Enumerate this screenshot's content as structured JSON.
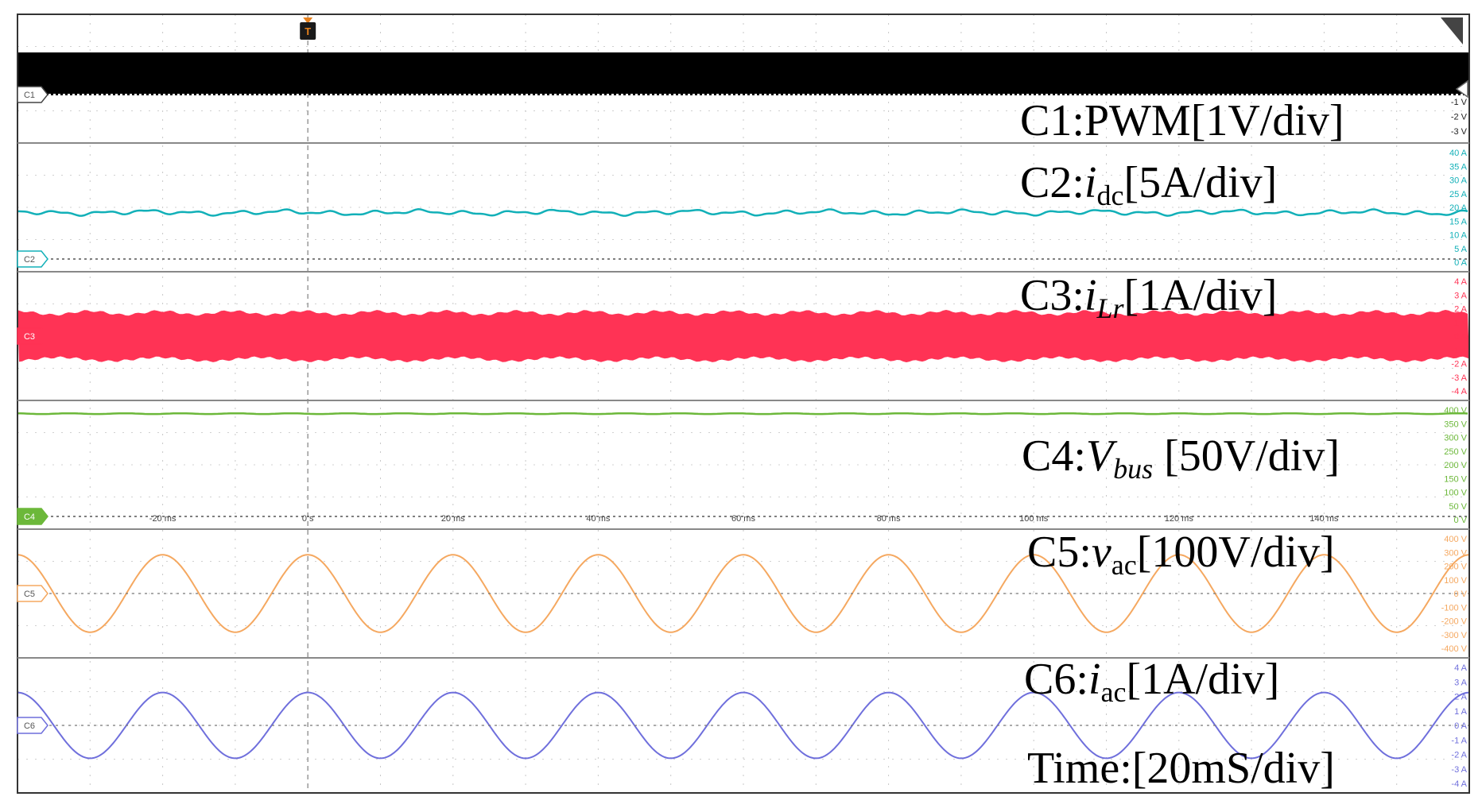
{
  "chart_data": {
    "type": "line",
    "trigger_marker": "T",
    "x_axis": {
      "ticks": [
        "-20 ms",
        "0 s",
        "20 ms",
        "40 ms",
        "60 ms",
        "80 ms",
        "100 ms",
        "120 ms",
        "140 ms"
      ],
      "range_ms": [
        -40,
        160
      ]
    },
    "grid": true,
    "channels": [
      {
        "id": "C1",
        "color": "#000000",
        "label": "C1:PWM[1V/div]",
        "label_parts": [
          {
            "t": "C1:PWM[1V/div]",
            "style": "normal"
          }
        ],
        "ticks": [
          "-1 V",
          "-2 V",
          "-3 V"
        ],
        "waveform": "pwm_band"
      },
      {
        "id": "C2",
        "color": "#12b0b8",
        "label": "C2:idc[5A/div]",
        "label_parts": [
          {
            "t": "C2:",
            "style": "normal"
          },
          {
            "t": "i",
            "style": "italic"
          },
          {
            "t": "dc",
            "style": "sub"
          },
          {
            "t": "[5A/div]",
            "style": "normal"
          }
        ],
        "ticks": [
          "40 A",
          "35 A",
          "30 A",
          "25 A",
          "20 A",
          "15 A",
          "10 A",
          "5 A",
          "0 A"
        ],
        "ylim": [
          0,
          40
        ],
        "dc_level": 18
      },
      {
        "id": "C3",
        "color": "#ff3355",
        "label": "C3:iLr[1A/div]",
        "label_parts": [
          {
            "t": "C3:",
            "style": "normal"
          },
          {
            "t": "i",
            "style": "italic"
          },
          {
            "t": "Lr",
            "style": "sub-italic"
          },
          {
            "t": "[1A/div]",
            "style": "normal"
          }
        ],
        "ticks": [
          "4 A",
          "3 A",
          "2 A",
          "1 A",
          "0 A",
          "-1 A",
          "-2 A",
          "-3 A",
          "-4 A"
        ],
        "ylim": [
          -4,
          4
        ],
        "envelope_peak": 1.8,
        "waveform": "hf_band"
      },
      {
        "id": "C4",
        "color": "#6cb83a",
        "label": "C4:Vbus [50V/div]",
        "label_parts": [
          {
            "t": "C4:",
            "style": "normal"
          },
          {
            "t": "V",
            "style": "italic"
          },
          {
            "t": "bus",
            "style": "sub-italic"
          },
          {
            "t": " [50V/div]",
            "style": "normal"
          }
        ],
        "ticks": [
          "400 V",
          "350 V",
          "300 V",
          "250 V",
          "200 V",
          "150 V",
          "100 V",
          "50 V",
          "0 V"
        ],
        "ylim": [
          0,
          400
        ],
        "dc_level": 400
      },
      {
        "id": "C5",
        "color": "#f5a860",
        "label": "C5:vac[100V/div]",
        "label_parts": [
          {
            "t": "C5:",
            "style": "normal"
          },
          {
            "t": "v",
            "style": "italic"
          },
          {
            "t": "ac",
            "style": "sub"
          },
          {
            "t": "[100V/div]",
            "style": "normal"
          }
        ],
        "ticks": [
          "400 V",
          "300 V",
          "200 V",
          "100 V",
          "0 V",
          "-100 V",
          "-200 V",
          "-300 V",
          "-400 V"
        ],
        "ylim": [
          -400,
          400
        ],
        "amplitude": 300,
        "frequency_hz": 50,
        "phase_deg": 0
      },
      {
        "id": "C6",
        "color": "#6f6fdc",
        "label": "C6:iac[1A/div]",
        "label_parts": [
          {
            "t": "C6:",
            "style": "normal"
          },
          {
            "t": "i",
            "style": "italic"
          },
          {
            "t": "ac",
            "style": "sub"
          },
          {
            "t": "[1A/div]",
            "style": "normal"
          }
        ],
        "ticks": [
          "4 A",
          "3 A",
          "2 A",
          "1 A",
          "0 A",
          "-1 A",
          "-2 A",
          "-3 A",
          "-4 A"
        ],
        "ylim": [
          -4,
          4
        ],
        "amplitude": 2.4,
        "frequency_hz": 50,
        "phase_deg": 0
      }
    ],
    "time_label": "Time:[20mS/div]"
  }
}
